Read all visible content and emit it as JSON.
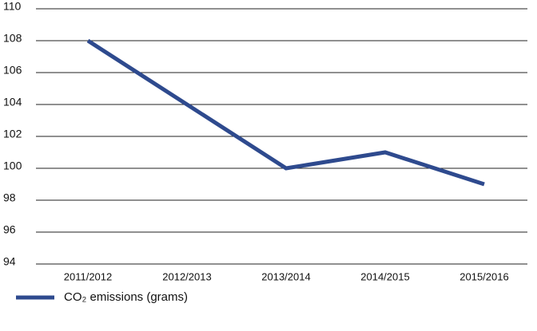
{
  "chart_data": {
    "type": "line",
    "categories": [
      "2011/2012",
      "2012/2013",
      "2013/2014",
      "2014/2015",
      "2015/2016"
    ],
    "series": [
      {
        "name": "CO₂ emissions (grams)",
        "color": "#2e4a8e",
        "values": [
          108,
          104,
          100,
          101,
          99
        ]
      }
    ],
    "ylim": [
      94,
      110
    ],
    "yticks": [
      94,
      96,
      98,
      100,
      102,
      104,
      106,
      108,
      110
    ],
    "grid": true
  }
}
